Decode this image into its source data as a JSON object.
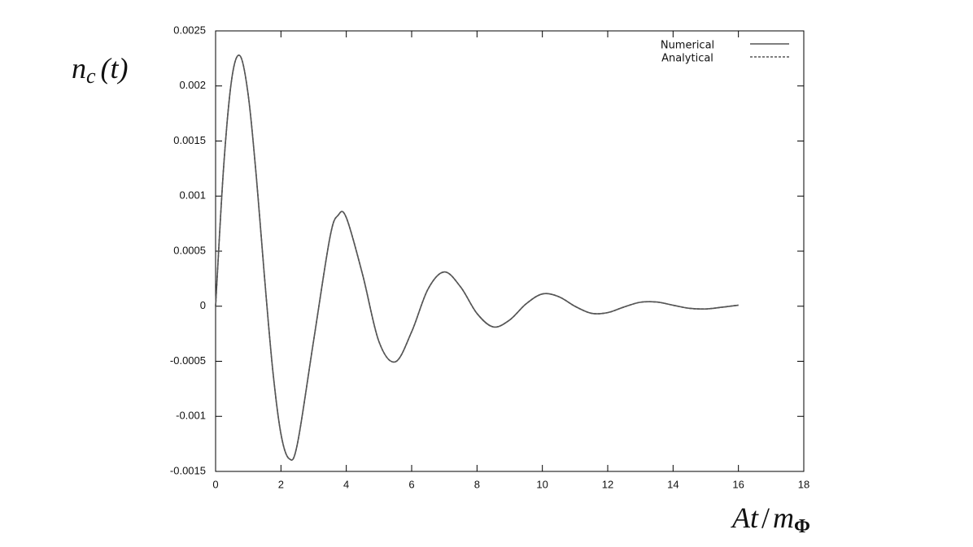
{
  "chart_data": {
    "type": "line",
    "y_label": [
      "n",
      "c",
      "(t)"
    ],
    "x_label": [
      "At",
      "/",
      "m",
      "Φ"
    ],
    "x": [
      0,
      0.25,
      0.5,
      0.75,
      1,
      1.25,
      1.5,
      1.75,
      2,
      2.25,
      2.5,
      3,
      3.5,
      3.75,
      4,
      4.5,
      5,
      5.5,
      6,
      6.5,
      7,
      7.5,
      8,
      8.5,
      9,
      9.5,
      10,
      10.5,
      11,
      11.5,
      12,
      12.5,
      13,
      13.5,
      14,
      14.5,
      15,
      15.5,
      16
    ],
    "series": [
      {
        "name": "Numerical",
        "color": "#555555",
        "dash": false,
        "values": [
          0,
          0.00128,
          0.002075,
          0.002273,
          0.001914,
          0.001164,
          0.000253,
          -0.000582,
          -0.00116,
          -0.001384,
          -0.001255,
          -0.000312,
          0.000626,
          0.000826,
          0.000805,
          0.000286,
          -0.000322,
          -0.000505,
          -0.000232,
          0.000155,
          0.000311,
          0.000174,
          -6.6e-05,
          -0.000188,
          -0.000125,
          2.1e-05,
          0.000111,
          8.7e-05,
          -1e-06,
          -6.4e-05,
          -5.8e-05,
          -7e-06,
          3.6e-05,
          3.8e-05,
          9e-06,
          -1.9e-05,
          -2.5e-05,
          -9e-06,
          1e-05
        ]
      },
      {
        "name": "Analytical",
        "color": "#555555",
        "dash": true,
        "values": [
          0,
          0.00128,
          0.002075,
          0.002273,
          0.001914,
          0.001164,
          0.000253,
          -0.000582,
          -0.00116,
          -0.001384,
          -0.001255,
          -0.000312,
          0.000626,
          0.000826,
          0.000805,
          0.000286,
          -0.000322,
          -0.000505,
          -0.000232,
          0.000155,
          0.000311,
          0.000174,
          -6.6e-05,
          -0.000188,
          -0.000125,
          2.1e-05,
          0.000111,
          8.7e-05,
          -1e-06,
          -6.4e-05,
          -5.8e-05,
          -7e-06,
          3.6e-05,
          3.8e-05,
          9e-06,
          -1.9e-05,
          -2.5e-05,
          -9e-06,
          1e-05
        ]
      }
    ],
    "xlim": [
      0,
      18
    ],
    "xticks": [
      0,
      2,
      4,
      6,
      8,
      10,
      12,
      14,
      16,
      18
    ],
    "ylim": [
      -0.0015,
      0.0025
    ],
    "yticks": [
      -0.0015,
      -0.001,
      -0.0005,
      0,
      0.0005,
      0.001,
      0.0015,
      0.002,
      0.0025
    ],
    "grid": false,
    "legend": "upper right"
  }
}
